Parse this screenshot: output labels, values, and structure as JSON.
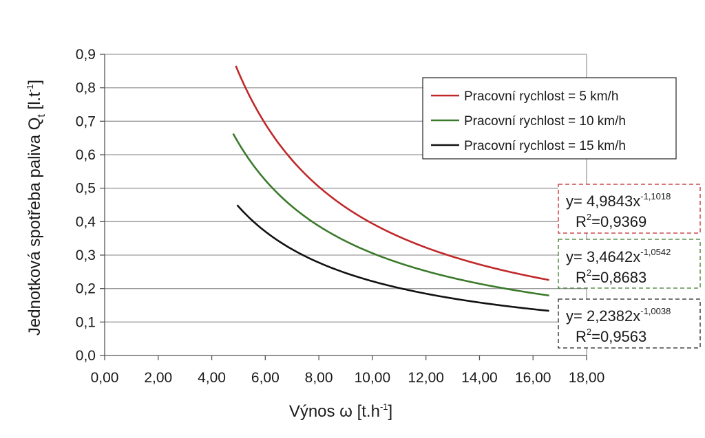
{
  "chart_data": {
    "type": "line",
    "xlabel": {
      "main": "Výnos ω [t.h",
      "sup": "-1",
      "end": "]"
    },
    "ylabel": {
      "main": "Jednotková spotřeba paliva Q",
      "sub": "t",
      "mid": " [l.t",
      "sup": "-1",
      "end": "]"
    },
    "xlim": [
      0,
      18
    ],
    "ylim": [
      0,
      0.9
    ],
    "x_ticks": [
      0,
      2,
      4,
      6,
      8,
      10,
      12,
      14,
      16,
      18
    ],
    "x_tick_labels": [
      "0,00",
      "2,00",
      "4,00",
      "6,00",
      "8,00",
      "10,00",
      "12,00",
      "14,00",
      "16,00",
      "18,00"
    ],
    "y_ticks": [
      0,
      0.1,
      0.2,
      0.3,
      0.4,
      0.5,
      0.6,
      0.7,
      0.8,
      0.9
    ],
    "y_tick_labels": [
      "0,0",
      "0,1",
      "0,2",
      "0,3",
      "0,4",
      "0,5",
      "0,6",
      "0,7",
      "0,8",
      "0,9"
    ],
    "grid": "horizontal",
    "legend_position": "top-right",
    "series": [
      {
        "name": "Pracovní rychlost = 5 km/h",
        "color": "#c0282a",
        "coef": 4.9843,
        "exp": -1.1018,
        "x_range": [
          4.9,
          16.6
        ],
        "equation": {
          "prefix": "y= 4,9843x",
          "sup": "-1,1018",
          "r2_prefix": "R",
          "r2_sup": "2",
          "r2_value": "=0,9369"
        },
        "box_color": "#c0282a"
      },
      {
        "name": "Pracovní rychlost = 10 km/h",
        "color": "#3b7a2b",
        "coef": 3.4642,
        "exp": -1.0542,
        "x_range": [
          4.8,
          16.6
        ],
        "equation": {
          "prefix": "y= 3,4642x",
          "sup": "-1,0542",
          "r2_prefix": "R",
          "r2_sup": "2",
          "r2_value": "=0,8683"
        },
        "box_color": "#3b7a2b"
      },
      {
        "name": "Pracovní rychlost = 15 km/h",
        "color": "#111111",
        "coef": 2.2382,
        "exp": -1.0038,
        "x_range": [
          4.95,
          16.6
        ],
        "equation": {
          "prefix": "y= 2,2382x",
          "sup": "-1,0038",
          "r2_prefix": "R",
          "r2_sup": "2",
          "r2_value": "=0,9563"
        },
        "box_color": "#222222"
      }
    ]
  }
}
